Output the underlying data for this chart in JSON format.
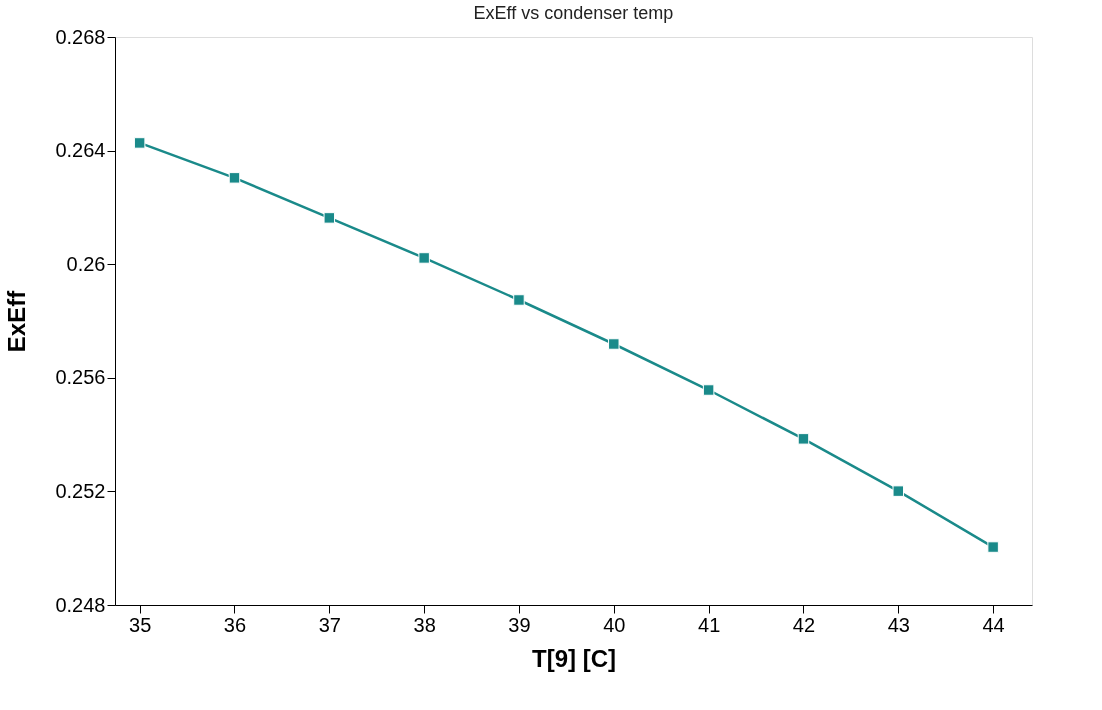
{
  "chart_data": {
    "type": "line",
    "title": "ExEff vs condenser temp",
    "xlabel": "T[9]   [C]",
    "ylabel": "ExEff",
    "x": [
      35,
      36,
      37,
      38,
      39,
      40,
      41,
      42,
      43,
      44
    ],
    "series": [
      {
        "color": "#1a8a8a",
        "values": [
          0.26427,
          0.26304,
          0.26163,
          0.26022,
          0.25874,
          0.25719,
          0.25557,
          0.25385,
          0.25201,
          0.25004
        ]
      }
    ],
    "xlim": [
      34.74,
      44.41
    ],
    "xticks": [
      35,
      36,
      37,
      38,
      39,
      40,
      41,
      42,
      43,
      44
    ],
    "ylim": [
      0.248,
      0.268
    ],
    "yticks": [
      0.248,
      0.252,
      0.256,
      0.26,
      0.264,
      0.268
    ],
    "marker": "square",
    "line_style": "solid",
    "grid": false
  }
}
